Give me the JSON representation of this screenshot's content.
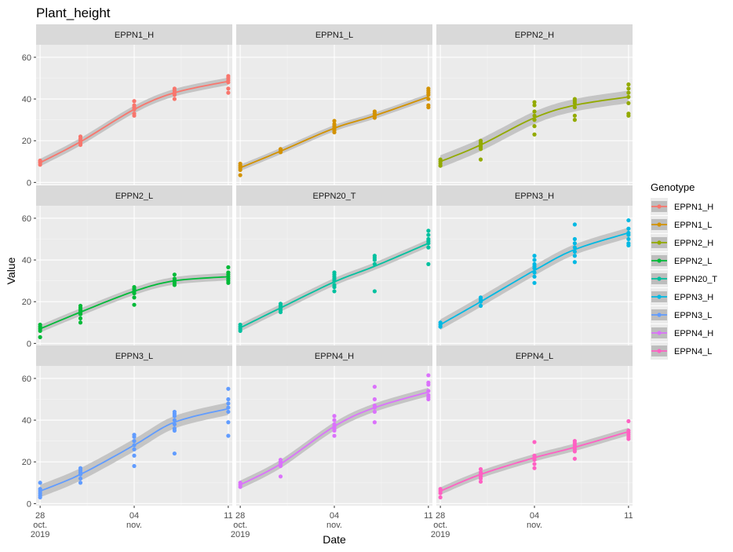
{
  "chart_data": {
    "type": "scatter",
    "title": "Plant_height",
    "xlabel": "Date",
    "ylabel": "Value",
    "ylim": [
      -1,
      66
    ],
    "yticks": [
      0,
      20,
      40,
      60
    ],
    "xlim": [
      -0.3,
      14.3
    ],
    "xticks": [
      {
        "x": 0,
        "label": "28",
        "sub1": "oct.",
        "sub2": "2019"
      },
      {
        "x": 7,
        "label": "04",
        "sub1": "nov.",
        "sub2": ""
      },
      {
        "x": 14,
        "label": "11",
        "sub1": "",
        "sub2": ""
      }
    ],
    "legend": {
      "title": "Genotype",
      "position": "right"
    },
    "ribbon_color": "#bdbdbd",
    "panels": [
      {
        "name": "EPPN1_H",
        "color": "#F8766D",
        "fit": [
          [
            0,
            9.5
          ],
          [
            3,
            19.5
          ],
          [
            7,
            35
          ],
          [
            10,
            43
          ],
          [
            14,
            48.5
          ]
        ],
        "band": 1.8,
        "points": [
          [
            0,
            8.5
          ],
          [
            0,
            9.5
          ],
          [
            0,
            10
          ],
          [
            0,
            10.5
          ],
          [
            3,
            18
          ],
          [
            3,
            19
          ],
          [
            3,
            20
          ],
          [
            3,
            21
          ],
          [
            3,
            22
          ],
          [
            7,
            32
          ],
          [
            7,
            33
          ],
          [
            7,
            35
          ],
          [
            7,
            36
          ],
          [
            7,
            37
          ],
          [
            7,
            39
          ],
          [
            10,
            40
          ],
          [
            10,
            42
          ],
          [
            10,
            43
          ],
          [
            10,
            44
          ],
          [
            10,
            45
          ],
          [
            14,
            43
          ],
          [
            14,
            45
          ],
          [
            14,
            48
          ],
          [
            14,
            49
          ],
          [
            14,
            50
          ],
          [
            14,
            51
          ]
        ]
      },
      {
        "name": "EPPN1_L",
        "color": "#D39200",
        "fit": [
          [
            0,
            7
          ],
          [
            3,
            15
          ],
          [
            7,
            26
          ],
          [
            10,
            32
          ],
          [
            14,
            41
          ]
        ],
        "band": 1.5,
        "points": [
          [
            0,
            3.5
          ],
          [
            0,
            6
          ],
          [
            0,
            7
          ],
          [
            0,
            8
          ],
          [
            0,
            9
          ],
          [
            3,
            14.5
          ],
          [
            3,
            15
          ],
          [
            3,
            16
          ],
          [
            7,
            24
          ],
          [
            7,
            25
          ],
          [
            7,
            26
          ],
          [
            7,
            27
          ],
          [
            7,
            28
          ],
          [
            7,
            29.5
          ],
          [
            10,
            31
          ],
          [
            10,
            32
          ],
          [
            10,
            33
          ],
          [
            10,
            34
          ],
          [
            14,
            36
          ],
          [
            14,
            37
          ],
          [
            14,
            40
          ],
          [
            14,
            42
          ],
          [
            14,
            43
          ],
          [
            14,
            44
          ],
          [
            14,
            45
          ]
        ]
      },
      {
        "name": "EPPN2_H",
        "color": "#93AA00",
        "fit": [
          [
            0,
            10
          ],
          [
            3,
            18
          ],
          [
            7,
            31
          ],
          [
            10,
            37
          ],
          [
            14,
            41
          ]
        ],
        "band": 3,
        "points": [
          [
            0,
            8
          ],
          [
            0,
            9
          ],
          [
            0,
            10
          ],
          [
            0,
            11
          ],
          [
            3,
            11
          ],
          [
            3,
            16
          ],
          [
            3,
            17
          ],
          [
            3,
            18
          ],
          [
            3,
            19
          ],
          [
            3,
            20
          ],
          [
            7,
            23
          ],
          [
            7,
            27
          ],
          [
            7,
            30
          ],
          [
            7,
            32
          ],
          [
            7,
            34
          ],
          [
            7,
            37
          ],
          [
            7,
            38.5
          ],
          [
            10,
            30
          ],
          [
            10,
            32
          ],
          [
            10,
            36
          ],
          [
            10,
            38
          ],
          [
            10,
            39
          ],
          [
            10,
            40
          ],
          [
            14,
            32
          ],
          [
            14,
            33
          ],
          [
            14,
            38
          ],
          [
            14,
            41
          ],
          [
            14,
            43
          ],
          [
            14,
            45
          ],
          [
            14,
            47
          ]
        ]
      },
      {
        "name": "EPPN2_L",
        "color": "#00BA38",
        "fit": [
          [
            0,
            7
          ],
          [
            3,
            15
          ],
          [
            7,
            25
          ],
          [
            10,
            30
          ],
          [
            14,
            32
          ]
        ],
        "band": 1.8,
        "points": [
          [
            0,
            3
          ],
          [
            0,
            6
          ],
          [
            0,
            7
          ],
          [
            0,
            8
          ],
          [
            0,
            9
          ],
          [
            3,
            10
          ],
          [
            3,
            12
          ],
          [
            3,
            14
          ],
          [
            3,
            15
          ],
          [
            3,
            16
          ],
          [
            3,
            17
          ],
          [
            3,
            18
          ],
          [
            7,
            18.5
          ],
          [
            7,
            22
          ],
          [
            7,
            24
          ],
          [
            7,
            25
          ],
          [
            7,
            26
          ],
          [
            7,
            27
          ],
          [
            10,
            28
          ],
          [
            10,
            29
          ],
          [
            10,
            30
          ],
          [
            10,
            31
          ],
          [
            10,
            33
          ],
          [
            14,
            29
          ],
          [
            14,
            30
          ],
          [
            14,
            31
          ],
          [
            14,
            32
          ],
          [
            14,
            33
          ],
          [
            14,
            34
          ],
          [
            14,
            36.5
          ]
        ]
      },
      {
        "name": "EPPN20_T",
        "color": "#00C19F",
        "fit": [
          [
            0,
            7.5
          ],
          [
            3,
            17
          ],
          [
            7,
            29.5
          ],
          [
            10,
            37
          ],
          [
            14,
            48
          ]
        ],
        "band": 1.8,
        "points": [
          [
            0,
            6
          ],
          [
            0,
            7
          ],
          [
            0,
            8
          ],
          [
            0,
            9
          ],
          [
            3,
            15
          ],
          [
            3,
            16
          ],
          [
            3,
            17
          ],
          [
            3,
            18
          ],
          [
            3,
            19
          ],
          [
            7,
            25
          ],
          [
            7,
            27
          ],
          [
            7,
            28
          ],
          [
            7,
            30
          ],
          [
            7,
            31
          ],
          [
            7,
            32
          ],
          [
            7,
            33
          ],
          [
            7,
            34
          ],
          [
            10,
            25
          ],
          [
            10,
            38
          ],
          [
            10,
            40
          ],
          [
            10,
            41
          ],
          [
            10,
            42
          ],
          [
            14,
            38
          ],
          [
            14,
            46
          ],
          [
            14,
            48
          ],
          [
            14,
            49
          ],
          [
            14,
            50
          ],
          [
            14,
            52
          ],
          [
            14,
            54
          ]
        ]
      },
      {
        "name": "EPPN3_H",
        "color": "#00B9E3",
        "fit": [
          [
            0,
            9
          ],
          [
            3,
            20
          ],
          [
            7,
            35
          ],
          [
            10,
            45
          ],
          [
            14,
            53
          ]
        ],
        "band": 2.5,
        "points": [
          [
            0,
            8
          ],
          [
            0,
            9
          ],
          [
            0,
            10
          ],
          [
            3,
            18
          ],
          [
            3,
            20
          ],
          [
            3,
            21
          ],
          [
            3,
            22
          ],
          [
            7,
            29
          ],
          [
            7,
            32
          ],
          [
            7,
            34
          ],
          [
            7,
            36
          ],
          [
            7,
            37
          ],
          [
            7,
            38
          ],
          [
            7,
            40
          ],
          [
            7,
            42
          ],
          [
            10,
            39
          ],
          [
            10,
            42
          ],
          [
            10,
            44
          ],
          [
            10,
            46
          ],
          [
            10,
            48
          ],
          [
            10,
            50
          ],
          [
            10,
            57
          ],
          [
            14,
            47
          ],
          [
            14,
            48
          ],
          [
            14,
            50
          ],
          [
            14,
            52
          ],
          [
            14,
            53
          ],
          [
            14,
            55
          ],
          [
            14,
            59
          ]
        ]
      },
      {
        "name": "EPPN3_L",
        "color": "#619CFF",
        "fit": [
          [
            0,
            6
          ],
          [
            3,
            14
          ],
          [
            7,
            28
          ],
          [
            10,
            39
          ],
          [
            14,
            45.5
          ]
        ],
        "band": 3,
        "points": [
          [
            0,
            3
          ],
          [
            0,
            4
          ],
          [
            0,
            5
          ],
          [
            0,
            6
          ],
          [
            0,
            7
          ],
          [
            0,
            10
          ],
          [
            3,
            10
          ],
          [
            3,
            12
          ],
          [
            3,
            14
          ],
          [
            3,
            15
          ],
          [
            3,
            16
          ],
          [
            3,
            17
          ],
          [
            7,
            18
          ],
          [
            7,
            23
          ],
          [
            7,
            26
          ],
          [
            7,
            28
          ],
          [
            7,
            30
          ],
          [
            7,
            32
          ],
          [
            7,
            33
          ],
          [
            10,
            24
          ],
          [
            10,
            35
          ],
          [
            10,
            36
          ],
          [
            10,
            38
          ],
          [
            10,
            40
          ],
          [
            10,
            42
          ],
          [
            10,
            43
          ],
          [
            10,
            44
          ],
          [
            14,
            32.5
          ],
          [
            14,
            39
          ],
          [
            14,
            44
          ],
          [
            14,
            46
          ],
          [
            14,
            48
          ],
          [
            14,
            50
          ],
          [
            14,
            55
          ]
        ]
      },
      {
        "name": "EPPN4_H",
        "color": "#DB72FB",
        "fit": [
          [
            0,
            9
          ],
          [
            3,
            19
          ],
          [
            7,
            37
          ],
          [
            10,
            46
          ],
          [
            14,
            53.5
          ]
        ],
        "band": 2,
        "points": [
          [
            0,
            8
          ],
          [
            0,
            9
          ],
          [
            0,
            10
          ],
          [
            3,
            13
          ],
          [
            3,
            18
          ],
          [
            3,
            19
          ],
          [
            3,
            20
          ],
          [
            3,
            21
          ],
          [
            7,
            32.5
          ],
          [
            7,
            35
          ],
          [
            7,
            36
          ],
          [
            7,
            37
          ],
          [
            7,
            38
          ],
          [
            7,
            40
          ],
          [
            7,
            42
          ],
          [
            10,
            39
          ],
          [
            10,
            44
          ],
          [
            10,
            46
          ],
          [
            10,
            47
          ],
          [
            10,
            50
          ],
          [
            10,
            56
          ],
          [
            14,
            50
          ],
          [
            14,
            51
          ],
          [
            14,
            52
          ],
          [
            14,
            54
          ],
          [
            14,
            57
          ],
          [
            14,
            58
          ],
          [
            14,
            61.5
          ]
        ]
      },
      {
        "name": "EPPN4_L",
        "color": "#FF61C3",
        "fit": [
          [
            0,
            6
          ],
          [
            3,
            14
          ],
          [
            7,
            22
          ],
          [
            10,
            27
          ],
          [
            14,
            34.5
          ]
        ],
        "band": 1.8,
        "points": [
          [
            0,
            3
          ],
          [
            0,
            5
          ],
          [
            0,
            6
          ],
          [
            0,
            7
          ],
          [
            3,
            10.5
          ],
          [
            3,
            12
          ],
          [
            3,
            13
          ],
          [
            3,
            14
          ],
          [
            3,
            15
          ],
          [
            3,
            16.5
          ],
          [
            7,
            17
          ],
          [
            7,
            19
          ],
          [
            7,
            21
          ],
          [
            7,
            22
          ],
          [
            7,
            23
          ],
          [
            7,
            29.5
          ],
          [
            10,
            21.5
          ],
          [
            10,
            25
          ],
          [
            10,
            26
          ],
          [
            10,
            27
          ],
          [
            10,
            28
          ],
          [
            10,
            29
          ],
          [
            10,
            30
          ],
          [
            14,
            31
          ],
          [
            14,
            32
          ],
          [
            14,
            33
          ],
          [
            14,
            34
          ],
          [
            14,
            35
          ],
          [
            14,
            39.5
          ]
        ]
      }
    ]
  }
}
